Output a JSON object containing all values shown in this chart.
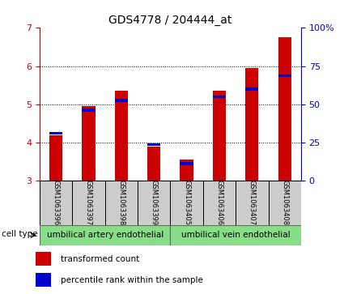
{
  "title": "GDS4778 / 204444_at",
  "samples": [
    "GSM1063396",
    "GSM1063397",
    "GSM1063398",
    "GSM1063399",
    "GSM1063405",
    "GSM1063406",
    "GSM1063407",
    "GSM1063408"
  ],
  "red_values": [
    4.2,
    4.95,
    5.35,
    3.9,
    3.55,
    5.35,
    5.95,
    6.75
  ],
  "blue_values": [
    4.25,
    4.85,
    5.1,
    3.95,
    3.45,
    5.2,
    5.4,
    5.75
  ],
  "ymin": 3,
  "ymax": 7,
  "yticks": [
    3,
    4,
    5,
    6,
    7
  ],
  "right_yticks": [
    0,
    25,
    50,
    75,
    100
  ],
  "right_yticklabels": [
    "0",
    "25",
    "50",
    "75",
    "100%"
  ],
  "cell_type_labels": [
    "umbilical artery endothelial",
    "umbilical vein endothelial"
  ],
  "bar_width": 0.4,
  "red_color": "#cc0000",
  "blue_color": "#0000cc",
  "cell_type_color": "#88dd88",
  "sample_box_color": "#cccccc",
  "legend_red": "transformed count",
  "legend_blue": "percentile rank within the sample",
  "bar_base": 3.0,
  "grid_lines": [
    4,
    5,
    6
  ],
  "title_fontsize": 10,
  "tick_fontsize": 8,
  "sample_fontsize": 6,
  "ct_fontsize": 7.5,
  "legend_fontsize": 7.5
}
